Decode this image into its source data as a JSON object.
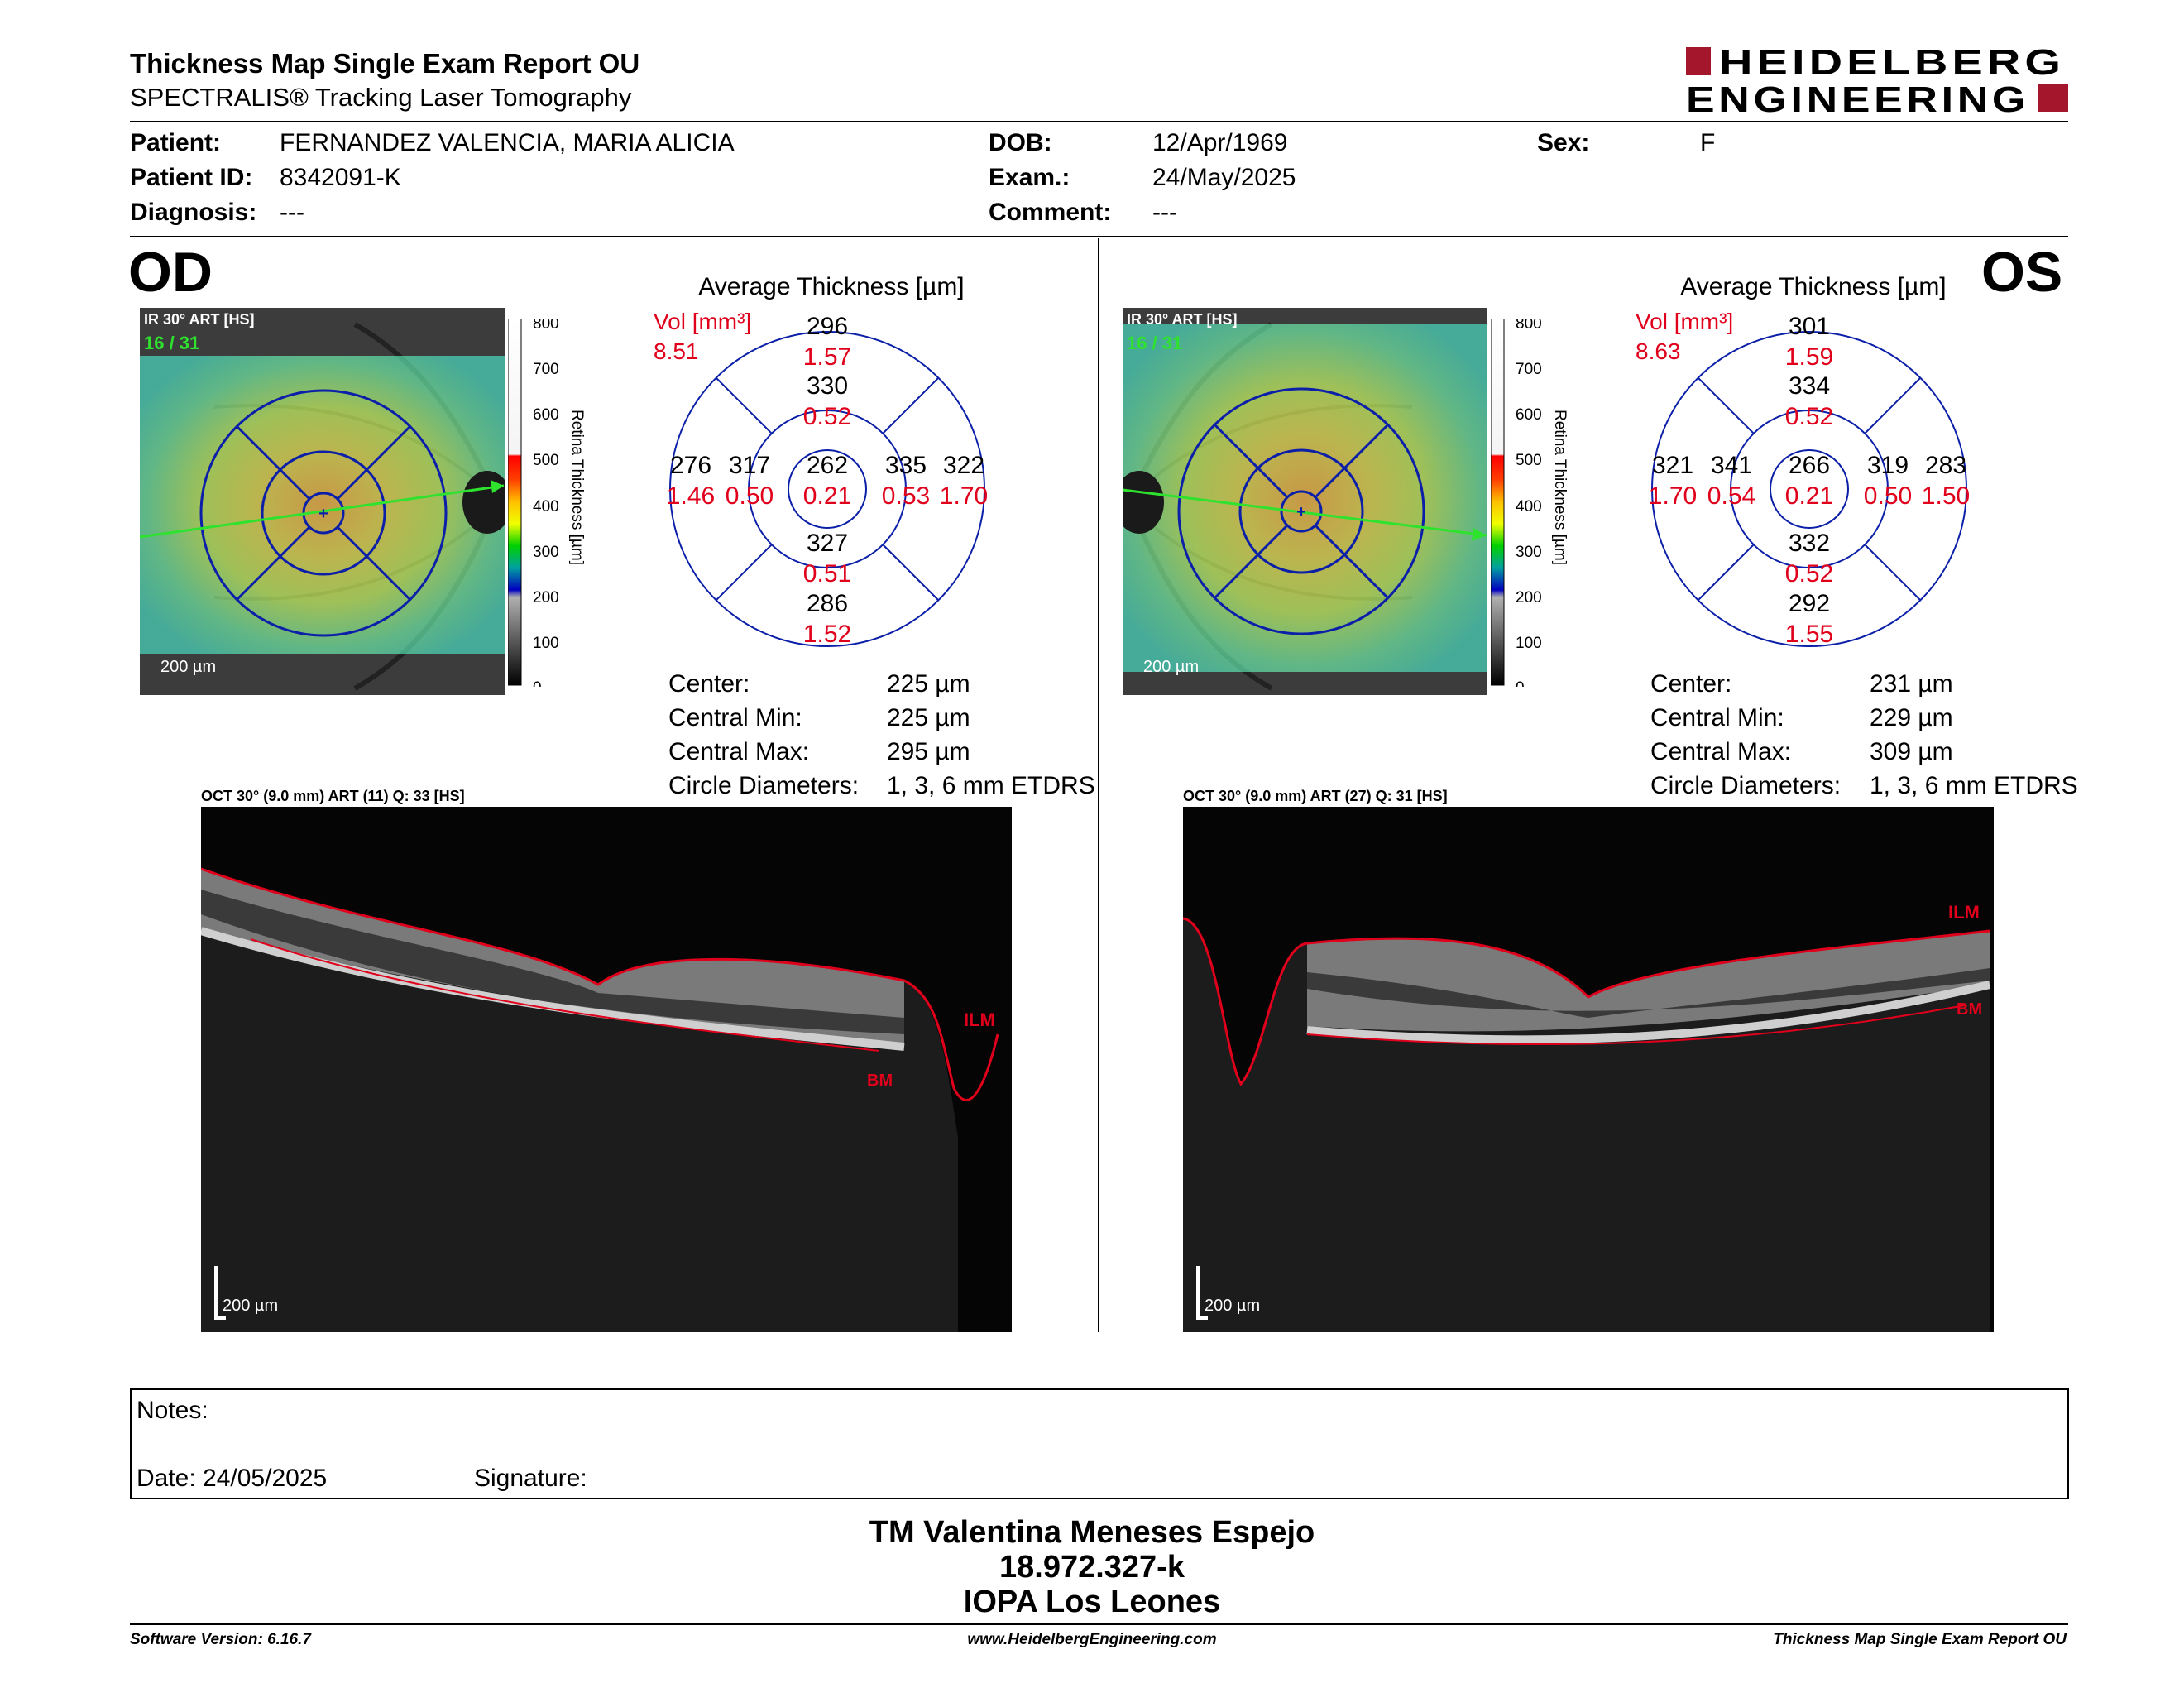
{
  "header": {
    "title": "Thickness Map Single Exam Report OU",
    "subtitle": "SPECTRALIS® Tracking Laser Tomography",
    "logo_line1": "HEIDELBERG",
    "logo_line2": "ENGINEERING",
    "brand_color": "#a3162b"
  },
  "patient": {
    "patient_label": "Patient:",
    "patient_value": "FERNANDEZ VALENCIA, MARIA ALICIA",
    "id_label": "Patient ID:",
    "id_value": "8342091-K",
    "diagnosis_label": "Diagnosis:",
    "diagnosis_value": "---",
    "dob_label": "DOB:",
    "dob_value": "12/Apr/1969",
    "exam_label": "Exam.:",
    "exam_value": "24/May/2025",
    "comment_label": "Comment:",
    "comment_value": "---",
    "sex_label": "Sex:",
    "sex_value": "F"
  },
  "od": {
    "eye": "OD",
    "ir_label": "IR 30° ART [HS]",
    "frames": "16 / 31",
    "scale": "200 µm",
    "avg_title": "Average Thickness [µm]",
    "vol_label": "Vol [mm³]",
    "vol_value": "8.51",
    "center_thk": "262",
    "center_vol": "0.21",
    "inner_sup_thk": "330",
    "inner_sup_vol": "0.52",
    "inner_inf_thk": "327",
    "inner_inf_vol": "0.51",
    "inner_nas_thk": "335",
    "inner_nas_vol": "0.53",
    "inner_tem_thk": "317",
    "inner_tem_vol": "0.50",
    "outer_sup_thk": "296",
    "outer_sup_vol": "1.57",
    "outer_inf_thk": "286",
    "outer_inf_vol": "1.52",
    "outer_nas_thk": "322",
    "outer_nas_vol": "1.70",
    "outer_tem_thk": "276",
    "outer_tem_vol": "1.46",
    "center_label": "Center:",
    "center_value": "225 µm",
    "min_label": "Central Min:",
    "min_value": "225 µm",
    "max_label": "Central Max:",
    "max_value": "295 µm",
    "diam_label": "Circle Diameters:",
    "diam_value": "1, 3, 6 mm ETDRS",
    "oct_label": "OCT 30° (9.0 mm) ART (11) Q: 33 [HS]",
    "ilm": "ILM",
    "bm": "BM"
  },
  "os": {
    "eye": "OS",
    "ir_label": "IR 30° ART [HS]",
    "frames": "16 / 31",
    "scale": "200 µm",
    "avg_title": "Average Thickness [µm]",
    "vol_label": "Vol [mm³]",
    "vol_value": "8.63",
    "center_thk": "266",
    "center_vol": "0.21",
    "inner_sup_thk": "334",
    "inner_sup_vol": "0.52",
    "inner_inf_thk": "332",
    "inner_inf_vol": "0.52",
    "inner_nas_thk": "341",
    "inner_nas_vol": "0.54",
    "inner_tem_thk": "319",
    "inner_tem_vol": "0.50",
    "outer_sup_thk": "301",
    "outer_sup_vol": "1.59",
    "outer_inf_thk": "292",
    "outer_inf_vol": "1.55",
    "outer_nas_thk": "321",
    "outer_nas_vol": "1.70",
    "outer_tem_thk": "283",
    "outer_tem_vol": "1.50",
    "center_label": "Center:",
    "center_value": "231 µm",
    "min_label": "Central Min:",
    "min_value": "229 µm",
    "max_label": "Central Max:",
    "max_value": "309 µm",
    "diam_label": "Circle Diameters:",
    "diam_value": "1, 3, 6 mm ETDRS",
    "oct_label": "OCT 30° (9.0 mm) ART (27) Q: 31 [HS]",
    "ilm": "ILM",
    "bm": "BM"
  },
  "colorbar": {
    "ticks": [
      "800",
      "700",
      "600",
      "500",
      "400",
      "300",
      "200",
      "100",
      "0"
    ],
    "label": "Retina  Thickness [µm]"
  },
  "notes": {
    "notes_label": "Notes:",
    "date_label": "Date: 24/05/2025",
    "signature_label": "Signature:"
  },
  "signer": {
    "name": "TM Valentina Meneses Espejo",
    "id": "18.972.327-k",
    "org": "IOPA Los Leones"
  },
  "footer": {
    "software": "Software Version: 6.16.7",
    "website": "www.HeidelbergEngineering.com",
    "report": "Thickness Map Single Exam Report OU"
  }
}
